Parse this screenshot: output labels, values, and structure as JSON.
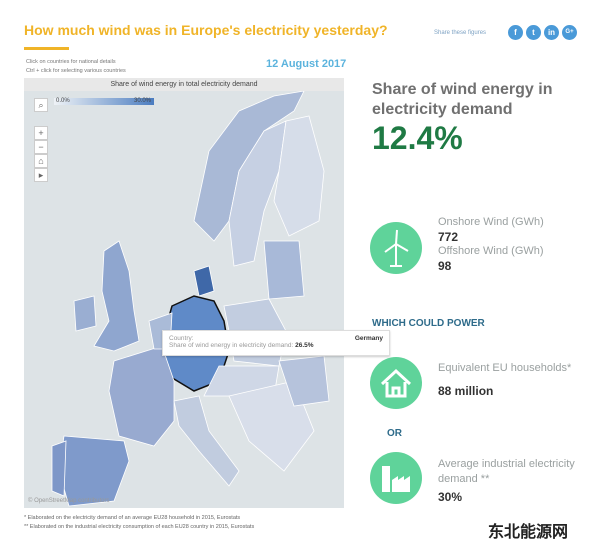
{
  "header": {
    "title": "How much wind was in Europe's electricity yesterday?",
    "share_label": "Share these figures",
    "social": [
      "f",
      "t",
      "in",
      "G+"
    ]
  },
  "instructions": [
    "Click on countries for national details",
    "Ctrl + click  for selecting various countries"
  ],
  "date": "12 August 2017",
  "map": {
    "title": "Share of wind energy in total electricity demand",
    "legend_min": "0.0%",
    "legend_max": "30.0%",
    "attribution": "© OpenStreetMap contributors",
    "tools": [
      "+",
      "−",
      "⌂",
      "▸"
    ],
    "tooltip": {
      "country_label": "Country:",
      "country": "Germany",
      "share_label": "Share of wind energy in electricity demand:",
      "share": "26.5%"
    }
  },
  "summary": {
    "title": "Share of wind energy in electricity demand",
    "value": "12.4%",
    "onshore_label": "Onshore Wind (GWh)",
    "onshore": "772",
    "offshore_label": "Offshore Wind (GWh)",
    "offshore": "98",
    "which_could_power": "WHICH COULD POWER",
    "households_label": "Equivalent EU households*",
    "households": "88 million",
    "or": "OR",
    "industrial_label": "Average industrial electricity demand **",
    "industrial": "30%"
  },
  "footnotes": [
    "* Elaborated on the electricity demand of an average EU28 household in 2015, Eurostats",
    "** Elaborated on the industrial electricity consumption of each EU28 country in 2015, Eurostats"
  ],
  "watermark": "东北能源网",
  "colors": {
    "accent": "#f0b428",
    "green": "#5fd39a",
    "value": "#1f7a44"
  }
}
